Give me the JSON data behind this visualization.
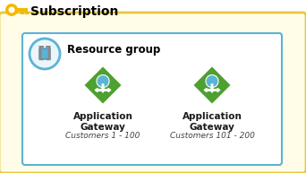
{
  "title": "Subscription",
  "group_label": "Resource group",
  "gw1_label": "Application\nGateway",
  "gw2_label": "Application\nGateway",
  "gw1_sub": "Customers 1 - 100",
  "gw2_sub": "Customers 101 - 200",
  "outer_bg": "#fffde7",
  "outer_border": "#e8c840",
  "inner_bg": "#ffffff",
  "inner_border": "#5ab4d6",
  "title_color": "#000000",
  "group_color": "#000000",
  "gw_label_color": "#1a1a1a",
  "gw_sub_color": "#444444",
  "key_color": "#f5b800",
  "diamond_color": "#4ea030",
  "circle_border": "#5ab4d6",
  "circle_bg": "#eaf6fc",
  "fig_width": 3.42,
  "fig_height": 1.93,
  "dpi": 100
}
